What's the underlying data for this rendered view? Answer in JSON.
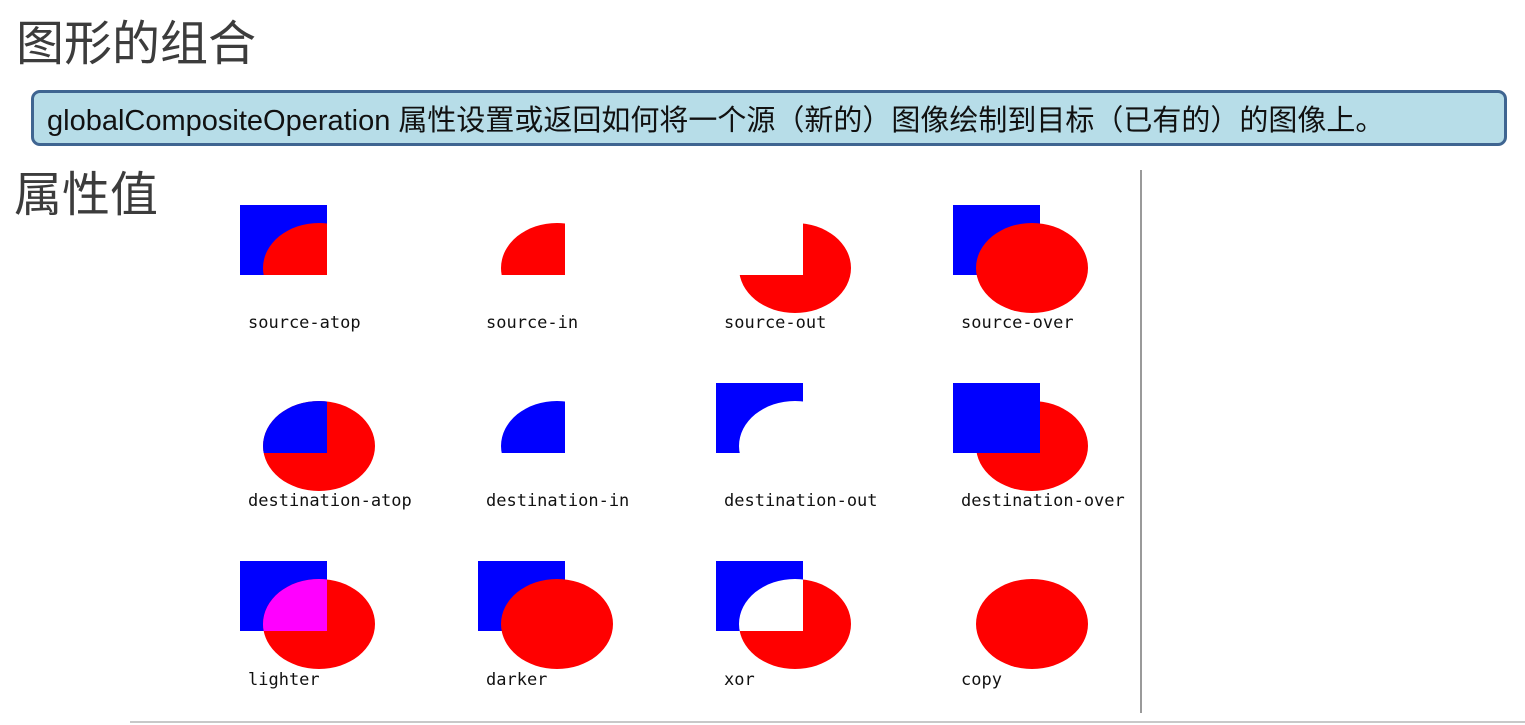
{
  "title": "图形的组合",
  "description": "globalCompositeOperation 属性设置或返回如何将一个源（新的）图像绘制到目标（已有的）的图像上。",
  "subtitle": "属性值",
  "colors": {
    "destination_square": "#0000ff",
    "source_circle": "#ff0000",
    "overlap_lighter": "#ff00ff",
    "description_background": "#b7dde8",
    "description_border": "#3f6591"
  },
  "operations": [
    {
      "label": "source-atop"
    },
    {
      "label": "source-in"
    },
    {
      "label": "source-out"
    },
    {
      "label": "source-over"
    },
    {
      "label": "destination-atop"
    },
    {
      "label": "destination-in"
    },
    {
      "label": "destination-out"
    },
    {
      "label": "destination-over"
    },
    {
      "label": "lighter"
    },
    {
      "label": "darker"
    },
    {
      "label": "xor"
    },
    {
      "label": "copy"
    }
  ]
}
